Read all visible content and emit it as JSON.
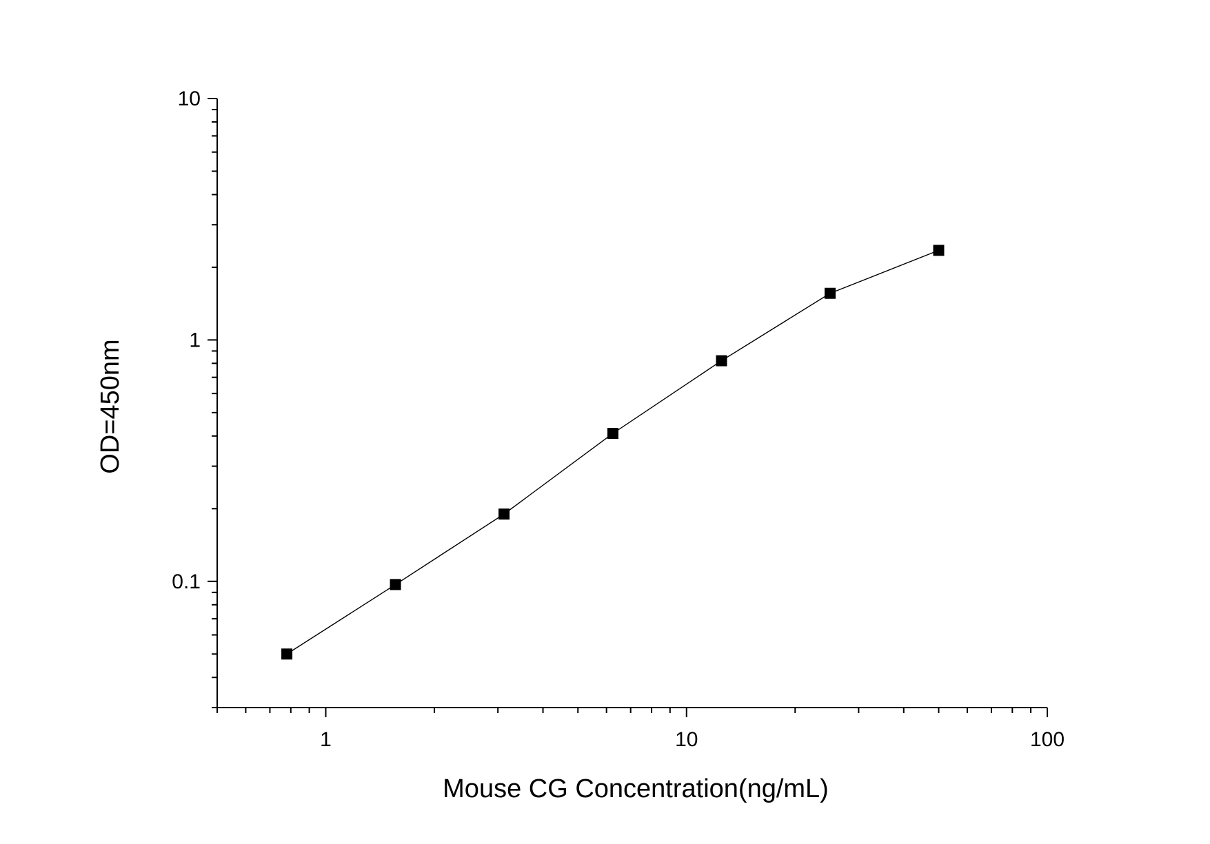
{
  "chart_data": {
    "type": "line",
    "title": "",
    "xlabel": "Mouse CG Concentration(ng/mL)",
    "ylabel": "OD=450nm",
    "x_scale": "log",
    "y_scale": "log",
    "xlim": [
      0.5,
      100
    ],
    "ylim": [
      0.03,
      10
    ],
    "x_ticks": [
      {
        "value": 1,
        "label": "1"
      },
      {
        "value": 10,
        "label": "10"
      },
      {
        "value": 100,
        "label": "100"
      }
    ],
    "y_ticks": [
      {
        "value": 0.1,
        "label": "0.1"
      },
      {
        "value": 1,
        "label": "1"
      },
      {
        "value": 10,
        "label": "10"
      }
    ],
    "grid": false,
    "legend": "none",
    "series": [
      {
        "marker": "square",
        "color": "#000000",
        "x": [
          0.78,
          1.56,
          3.12,
          6.25,
          12.5,
          25,
          50
        ],
        "y": [
          0.05,
          0.097,
          0.19,
          0.41,
          0.82,
          1.56,
          2.35
        ]
      }
    ]
  }
}
